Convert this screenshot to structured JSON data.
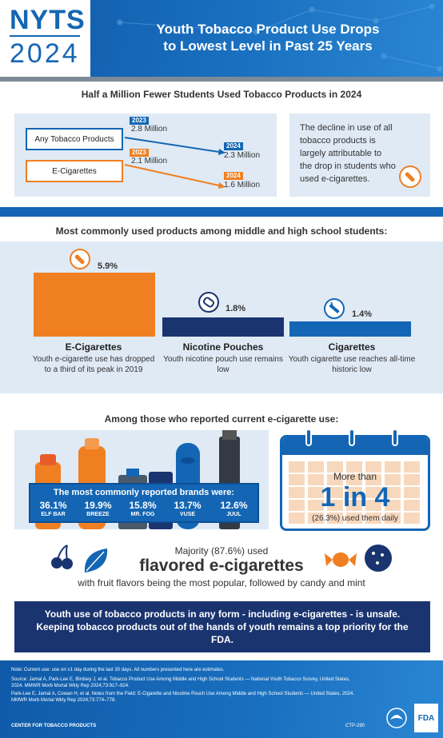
{
  "header": {
    "logo_acronym": "NYTS",
    "logo_year": "2024",
    "title_line1": "Youth Tobacco Product Use Drops",
    "title_line2": "to Lowest Level in Past 25 Years"
  },
  "trend": {
    "title": "Half a Million Fewer Students Used Tobacco Products in 2024",
    "any_label": "Any Tobacco Products",
    "ecig_label": "E-Cigarettes",
    "any_start_year": "2023",
    "any_start_value": "2.8 Million",
    "any_end_year": "2024",
    "any_end_value": "2.3 Million",
    "ecig_start_year": "2023",
    "ecig_start_value": "2.1 Million",
    "ecig_end_year": "2024",
    "ecig_end_value": "1.6 Million",
    "side_note": "The decline in use of all tobacco products is largely attributable to the drop in students who used e-cigarettes.",
    "colors": {
      "any": "#1466b4",
      "ecig": "#f07f22"
    }
  },
  "products": {
    "title": "Most commonly used products among middle and high school students:",
    "items": [
      {
        "name": "E-Cigarettes",
        "percent": "5.9%",
        "value": 5.9,
        "description": "Youth e-cigarette use has dropped to a third of its peak in 2019",
        "color": "#f07f22",
        "icon": "e-cigarette-icon"
      },
      {
        "name": "Nicotine Pouches",
        "percent": "1.8%",
        "value": 1.8,
        "description": "Youth nicotine pouch use remains low",
        "color": "#1a3470",
        "icon": "nicotine-pouch-icon"
      },
      {
        "name": "Cigarettes",
        "percent": "1.4%",
        "value": 1.4,
        "description": "Youth cigarette use reaches all-time historic low",
        "color": "#1466b4",
        "icon": "cigarette-icon"
      }
    ]
  },
  "ecig_users": {
    "title": "Among those who reported current e-cigarette use:",
    "brands_heading": "The most commonly reported brands were:",
    "brands": [
      {
        "percent": "36.1%",
        "name": "ELF BAR"
      },
      {
        "percent": "19.9%",
        "name": "BREEZE"
      },
      {
        "percent": "15.8%",
        "name": "MR. FOG"
      },
      {
        "percent": "13.7%",
        "name": "VUSE"
      },
      {
        "percent": "12.6%",
        "name": "JUUL"
      }
    ],
    "daily_more_than": "More than",
    "daily_ratio": "1 in 4",
    "daily_detail": "(26.3%) used them daily",
    "flavor_majority": "Majority (87.6%) used",
    "flavor_headline": "flavored e-cigarettes",
    "flavor_detail": "with fruit flavors being the most popular, followed by candy and mint"
  },
  "callout": {
    "text": "Youth use of tobacco products in any form - including e-cigarettes - is unsafe. Keeping tobacco products out of the hands of youth remains a top priority for the FDA."
  },
  "footer": {
    "note": "Note: Current use: use on ≥1 day during the last 30 days. All numbers presented here are estimates.",
    "source1": "Source: Jamal A, Park-Lee E, Birdsey J, et al. Tobacco Product Use Among Middle and High School Students — National Youth Tobacco Survey, United States, 2024. MMWR Morb Mortal Wkly Rep 2024;73:917–924.",
    "source2": "Park-Lee E, Jamal A, Cowan H, et al. Notes from the Field: E-Cigarette and Nicotine Pouch Use Among Middle and High School Students — United States, 2024. MMWR Morb Mortal Wkly Rep 2024;73:774–778.",
    "center": "CENTER FOR TOBACCO PRODUCTS",
    "code": "CTP-290",
    "fda": "FDA"
  }
}
